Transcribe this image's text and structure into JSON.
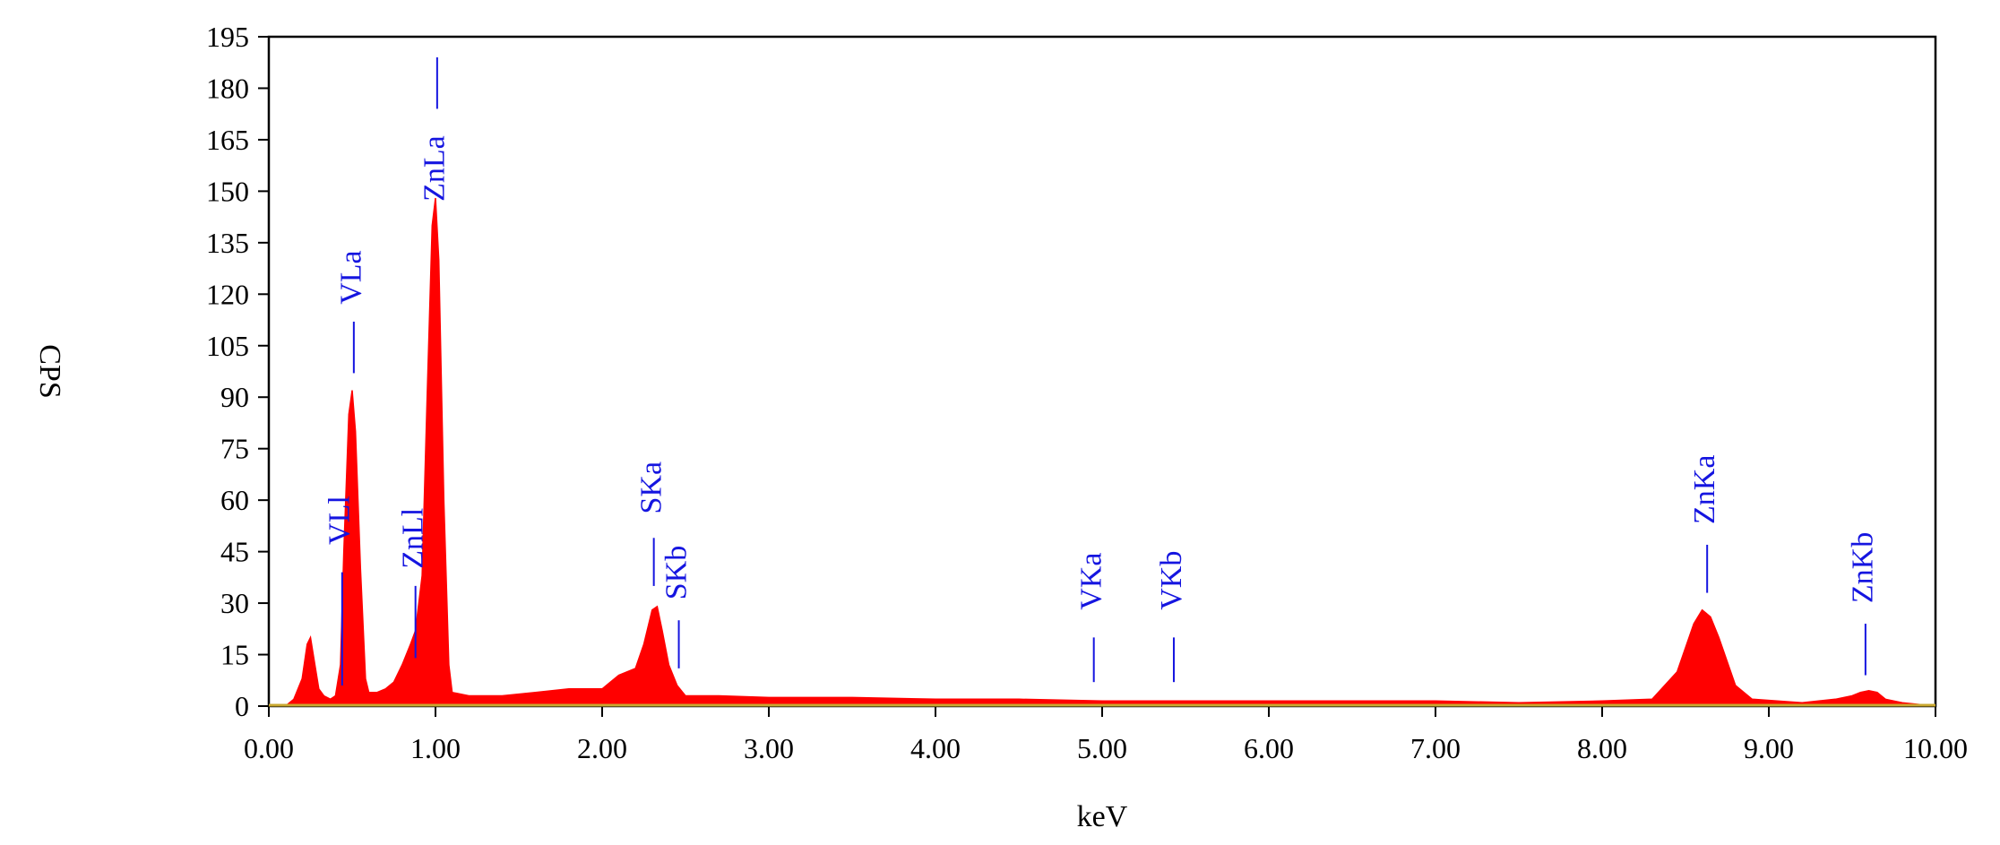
{
  "chart_data": {
    "type": "area",
    "title": "",
    "xlabel": "keV",
    "ylabel": "CPS",
    "xlim": [
      0,
      10
    ],
    "ylim": [
      0,
      195
    ],
    "x_ticks": [
      "0.00",
      "1.00",
      "2.00",
      "3.00",
      "4.00",
      "5.00",
      "6.00",
      "7.00",
      "8.00",
      "9.00",
      "10.00"
    ],
    "y_ticks": [
      "0",
      "15",
      "30",
      "45",
      "60",
      "75",
      "90",
      "105",
      "120",
      "135",
      "150",
      "165",
      "180",
      "195"
    ],
    "grid": false,
    "fill_color": "#ff0000",
    "label_color": "#1515e0",
    "series": [
      {
        "x": [
          0.0,
          0.1,
          0.15,
          0.2,
          0.23,
          0.25,
          0.27,
          0.3,
          0.33,
          0.37,
          0.4,
          0.43,
          0.45,
          0.48,
          0.5,
          0.52,
          0.55,
          0.58,
          0.6,
          0.65,
          0.7,
          0.75,
          0.8,
          0.85,
          0.88,
          0.92,
          0.95,
          0.98,
          1.0,
          1.02,
          1.05,
          1.08,
          1.1,
          1.2,
          1.4,
          1.6,
          1.8,
          2.0,
          2.1,
          2.2,
          2.25,
          2.3,
          2.33,
          2.36,
          2.4,
          2.45,
          2.5,
          2.7,
          3.0,
          3.5,
          4.0,
          4.5,
          5.0,
          5.5,
          6.0,
          6.5,
          7.0,
          7.5,
          8.0,
          8.3,
          8.45,
          8.55,
          8.6,
          8.65,
          8.7,
          8.8,
          8.9,
          9.2,
          9.4,
          9.5,
          9.55,
          9.6,
          9.65,
          9.7,
          9.8,
          10.0
        ],
        "y": [
          0,
          0,
          2,
          8,
          18,
          20,
          14,
          5,
          3,
          2,
          3,
          12,
          45,
          85,
          92,
          80,
          40,
          8,
          4,
          4,
          5,
          7,
          12,
          18,
          22,
          38,
          90,
          140,
          148,
          130,
          60,
          12,
          4,
          3,
          3,
          4,
          5,
          5,
          9,
          11,
          18,
          28,
          29,
          22,
          12,
          6,
          3,
          3,
          2.5,
          2.5,
          2,
          2,
          1.5,
          1.5,
          1.5,
          1.5,
          1.5,
          1,
          1.5,
          2,
          10,
          24,
          28,
          26,
          20,
          6,
          2,
          1,
          2,
          3,
          4,
          4.5,
          4,
          2,
          1,
          0
        ]
      }
    ],
    "peak_labels": [
      {
        "text": "VLl",
        "x": 0.44,
        "line_y": [
          6,
          39
        ],
        "label_y": 47
      },
      {
        "text": "VLa",
        "x": 0.51,
        "line_y": [
          97,
          112
        ],
        "label_y": 117
      },
      {
        "text": "ZnLl",
        "x": 0.88,
        "line_y": [
          14,
          35
        ],
        "label_y": 40
      },
      {
        "text": "ZnLa",
        "x": 1.01,
        "line_y": [
          174,
          189
        ],
        "label_y": 147
      },
      {
        "text": "SKa",
        "x": 2.31,
        "line_y": [
          35,
          49
        ],
        "label_y": 56
      },
      {
        "text": "SKb",
        "x": 2.46,
        "line_y": [
          11,
          25
        ],
        "label_y": 31
      },
      {
        "text": "VKa",
        "x": 4.95,
        "line_y": [
          7,
          20
        ],
        "label_y": 28
      },
      {
        "text": "VKb",
        "x": 5.43,
        "line_y": [
          7,
          20
        ],
        "label_y": 28
      },
      {
        "text": "ZnKa",
        "x": 8.63,
        "line_y": [
          33,
          47
        ],
        "label_y": 53
      },
      {
        "text": "ZnKb",
        "x": 9.58,
        "line_y": [
          9,
          24
        ],
        "label_y": 30
      }
    ]
  }
}
